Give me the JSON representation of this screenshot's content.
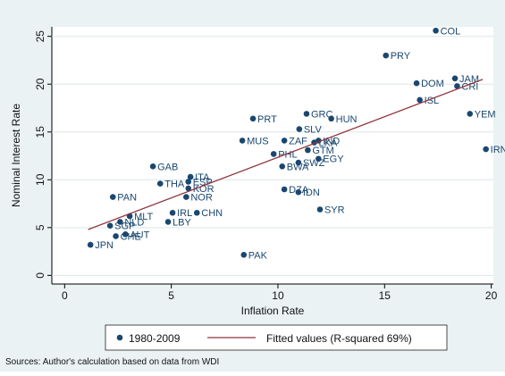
{
  "chart_data": {
    "type": "scatter",
    "x_label": "Inflation Rate",
    "y_label": "Nominal Interest Rate",
    "note": "Sources: Author's calculation based on data from WDI",
    "xlim": [
      -0.6,
      20.1
    ],
    "ylim": [
      -0.9,
      26
    ],
    "xticks": [
      0,
      5,
      10,
      15,
      20
    ],
    "yticks": [
      0,
      5,
      10,
      15,
      20,
      25
    ],
    "grid": true,
    "series": [
      {
        "name": "1980-2009",
        "color": "#1a476f",
        "labels": [
          "COL",
          "PRY",
          "DOM",
          "JAM",
          "CRI",
          "ISL",
          "YEM",
          "IRN",
          "PRT",
          "GRC",
          "HUN",
          "SLV",
          "MUS",
          "ZAF",
          "IND",
          "LKA",
          "GTM",
          "EGY",
          "PHL",
          "SWZ",
          "BWA",
          "DZA",
          "IDN",
          "SYR",
          "PAK",
          "GAB",
          "ITA",
          "ESP",
          "KOR",
          "THA",
          "NOR",
          "PAN",
          "MLT",
          "NLD",
          "SGP",
          "CHE",
          "AUT",
          "JPN",
          "LBY",
          "IRL",
          "CHN"
        ],
        "x": [
          17.4,
          15.06,
          16.5,
          18.3,
          18.4,
          16.65,
          19.0,
          19.75,
          8.83,
          11.34,
          12.5,
          11.0,
          8.33,
          10.3,
          11.9,
          11.7,
          11.4,
          11.9,
          9.8,
          10.96,
          10.2,
          10.3,
          10.96,
          11.97,
          8.4,
          4.14,
          5.9,
          5.8,
          5.8,
          4.48,
          5.7,
          2.26,
          3.05,
          2.6,
          2.13,
          2.4,
          2.85,
          1.21,
          4.85,
          5.06,
          6.2
        ],
        "values": [
          25.6,
          23.0,
          20.1,
          20.6,
          19.8,
          18.35,
          16.9,
          13.2,
          16.4,
          16.9,
          16.4,
          15.3,
          14.1,
          14.1,
          14.1,
          13.9,
          13.1,
          12.2,
          12.7,
          11.8,
          11.4,
          9.0,
          8.7,
          6.9,
          2.15,
          11.4,
          10.3,
          9.8,
          9.1,
          9.6,
          8.2,
          8.2,
          6.2,
          5.6,
          5.2,
          4.1,
          4.3,
          3.2,
          5.6,
          6.55,
          6.55
        ]
      },
      {
        "name": "Fitted values (R-squared 69%)",
        "type": "line",
        "color": "#90353b",
        "x": [
          1.1,
          19.6
        ],
        "values": [
          4.8,
          20.5
        ]
      }
    ]
  }
}
